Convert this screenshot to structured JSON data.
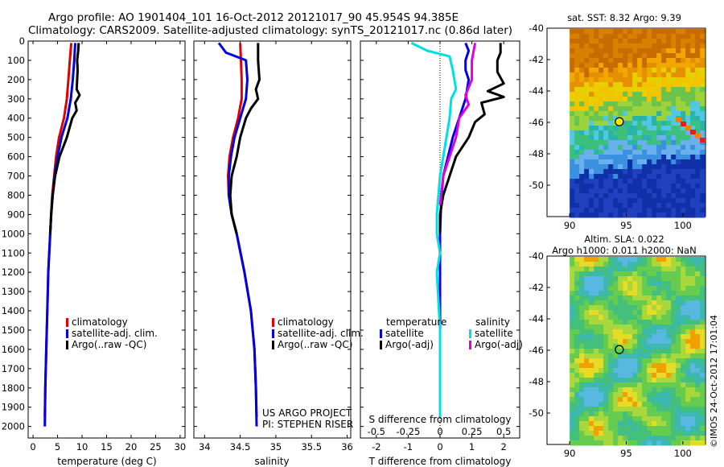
{
  "header": {
    "title_line1": "Argo profile: AO 1901404_101 16-Oct-2012 20121017_90 45.954S 94.385E",
    "title_line2": "Climatology: CARS2009. Satellite-adjusted climatology: synTS_20121017.nc (0.86d later)"
  },
  "credit": {
    "line1": "US ARGO PROJECT",
    "line2": "PI: STEPHEN RISER"
  },
  "footer_stamp": "©IMOS 24-Oct-2012 17:01:04",
  "colors": {
    "climatology": "#e00000",
    "satellite": "#0000e0",
    "argo": "#000000",
    "salinity_satellite": "#00e0e0",
    "salinity_argo": "#e000e0"
  },
  "chart_data": [
    {
      "id": "temperature",
      "type": "line",
      "xlabel": "temperature (deg C)",
      "ylabel": "",
      "xlim": [
        -1,
        31
      ],
      "ylim": [
        2060,
        0
      ],
      "y_reversed": true,
      "xticks": [
        0,
        5,
        10,
        15,
        20,
        25,
        30
      ],
      "yticks": [
        0,
        100,
        200,
        300,
        400,
        500,
        600,
        700,
        800,
        900,
        1000,
        1100,
        1200,
        1300,
        1400,
        1500,
        1600,
        1700,
        1800,
        1900,
        2000
      ],
      "legend_position": "lower-center",
      "legend": [
        "climatology",
        "satellite-adj. clim.",
        "Argo(..raw -QC)"
      ],
      "series": [
        {
          "name": "climatology",
          "color_key": "climatology",
          "depth": [
            10,
            100,
            200,
            300,
            400,
            500,
            600,
            700,
            800,
            900,
            1000,
            1200,
            1400,
            1600,
            1800,
            1950
          ],
          "values": [
            7.8,
            7.5,
            7.2,
            6.9,
            6.3,
            5.3,
            4.7,
            4.3,
            3.9,
            3.7,
            3.5,
            3.1,
            2.9,
            2.7,
            2.5,
            2.4
          ]
        },
        {
          "name": "satellite-adj. clim.",
          "color_key": "satellite",
          "depth": [
            10,
            100,
            200,
            300,
            400,
            500,
            600,
            700,
            800,
            900,
            1000,
            1200,
            1400,
            1600,
            1800,
            2000
          ],
          "values": [
            8.6,
            8.4,
            8.1,
            7.7,
            7.0,
            5.8,
            5.0,
            4.4,
            4.0,
            3.7,
            3.5,
            3.1,
            2.9,
            2.7,
            2.5,
            2.4
          ]
        },
        {
          "name": "Argo(..raw -QC)",
          "color_key": "argo",
          "depth": [
            10,
            50,
            100,
            150,
            200,
            250,
            280,
            320,
            360,
            400,
            500,
            600,
            700,
            800,
            900,
            1000
          ],
          "values": [
            9.3,
            9.2,
            9.0,
            9.1,
            9.0,
            8.9,
            9.5,
            8.6,
            8.9,
            8.0,
            6.9,
            5.4,
            4.5,
            4.0,
            3.7,
            3.5
          ]
        }
      ]
    },
    {
      "id": "salinity",
      "type": "line",
      "xlabel": "salinity",
      "ylabel": "",
      "xlim": [
        33.85,
        36.05
      ],
      "ylim": [
        2060,
        0
      ],
      "y_reversed": true,
      "xticks": [
        34,
        34.5,
        35,
        35.5,
        36
      ],
      "legend_position": "lower-center",
      "legend": [
        "climatology",
        "satellite-adj. clim.",
        "Argo(..raw -QC)"
      ],
      "series": [
        {
          "name": "climatology",
          "color_key": "climatology",
          "depth": [
            10,
            100,
            200,
            300,
            400,
            500,
            600,
            700,
            800,
            900,
            1000,
            1200,
            1400,
            1600,
            1800,
            1950
          ],
          "values": [
            34.5,
            34.51,
            34.52,
            34.52,
            34.47,
            34.4,
            34.35,
            34.33,
            34.34,
            34.38,
            34.45,
            34.56,
            34.65,
            34.7,
            34.72,
            34.73
          ]
        },
        {
          "name": "satellite-adj. clim.",
          "color_key": "satellite",
          "depth": [
            10,
            60,
            100,
            200,
            300,
            400,
            500,
            600,
            700,
            800,
            900,
            1000,
            1200,
            1400,
            1600,
            1800,
            2000
          ],
          "values": [
            34.2,
            34.3,
            34.58,
            34.6,
            34.58,
            34.5,
            34.42,
            34.37,
            34.34,
            34.34,
            34.38,
            34.45,
            34.56,
            34.65,
            34.7,
            34.72,
            34.73
          ]
        },
        {
          "name": "Argo(..raw -QC)",
          "color_key": "argo",
          "depth": [
            10,
            100,
            200,
            250,
            300,
            350,
            400,
            500,
            600,
            700,
            800,
            900,
            1000
          ],
          "values": [
            34.75,
            34.75,
            34.77,
            34.72,
            34.75,
            34.65,
            34.58,
            34.5,
            34.45,
            34.38,
            34.36,
            34.38,
            34.45
          ]
        }
      ]
    },
    {
      "id": "difference",
      "type": "line",
      "xlabel": "T difference from climatology",
      "xlabel_top": "S difference from climatology",
      "ylabel": "",
      "xlim": [
        -2.5,
        2.5
      ],
      "ylim": [
        2060,
        0
      ],
      "y_reversed": true,
      "xticks": [
        -2,
        -1,
        0,
        1,
        2
      ],
      "xtick_labels_top": [
        "-0.5",
        "-0.25",
        "0",
        "0.25",
        "0.5"
      ],
      "xticks_top_values": [
        -2,
        -1,
        0,
        1,
        2
      ],
      "zero_line": "dotted",
      "legend_position": "lower-center",
      "legend_groups": [
        {
          "title": "temperature",
          "items": [
            "satellite",
            "Argo(-adj)"
          ]
        },
        {
          "title": "salinity",
          "items": [
            "satellite",
            "Argo(-adj)"
          ]
        }
      ],
      "series": [
        {
          "name": "satellite",
          "group": "temperature",
          "color_key": "satellite",
          "depth": [
            10,
            50,
            100,
            150,
            200,
            300,
            400,
            500,
            600,
            700,
            800,
            900,
            1000,
            1200,
            1500,
            1800,
            1950
          ],
          "values": [
            0.8,
            0.9,
            0.8,
            0.8,
            0.9,
            0.8,
            0.6,
            0.4,
            0.25,
            0.1,
            0.05,
            0.02,
            0,
            0,
            0,
            0,
            0
          ]
        },
        {
          "name": "Argo(-adj)",
          "group": "temperature",
          "color_key": "argo",
          "depth": [
            10,
            60,
            100,
            160,
            220,
            260,
            290,
            320,
            380,
            420,
            500,
            600,
            700,
            800,
            900,
            1000
          ],
          "values": [
            1.9,
            1.9,
            1.8,
            1.8,
            2.0,
            1.5,
            2.0,
            1.3,
            1.4,
            1.1,
            0.9,
            0.5,
            0.3,
            0.1,
            0.0,
            0.0
          ]
        },
        {
          "name": "satellite",
          "group": "salinity",
          "color_key": "salinity_satellite",
          "depth": [
            10,
            50,
            80,
            150,
            250,
            300,
            400,
            500,
            600,
            700,
            800,
            900,
            1000,
            1100,
            1200,
            1500,
            1800,
            1950
          ],
          "values": [
            -0.9,
            -0.4,
            0.3,
            0.4,
            0.5,
            0.35,
            0.3,
            0.2,
            0.1,
            0.0,
            -0.05,
            -0.1,
            -0.1,
            0.0,
            -0.1,
            0.0,
            0.0,
            0.0
          ]
        },
        {
          "name": "Argo(-adj)",
          "group": "salinity",
          "color_key": "salinity_argo",
          "depth": [
            10,
            100,
            200,
            280,
            330,
            400,
            500,
            600,
            700,
            850
          ],
          "values": [
            1.1,
            1.0,
            1.0,
            0.8,
            0.9,
            0.6,
            0.5,
            0.3,
            0.1,
            0.0
          ]
        }
      ]
    },
    {
      "id": "sst_map",
      "type": "heatmap",
      "title": "sat. SST: 8.32 Argo: 9.39",
      "xlim": [
        88,
        102
      ],
      "ylim": [
        -52,
        -40
      ],
      "xticks": [
        90,
        95,
        100
      ],
      "yticks": [
        -40,
        -42,
        -44,
        -46,
        -48,
        -50
      ],
      "marker": {
        "lon": 94.385,
        "lat": -45.954
      }
    },
    {
      "id": "sla_map",
      "type": "heatmap",
      "title_line1": "Altim. SLA: 0.022",
      "title_line2": "Argo h1000: 0.011 h2000: NaN",
      "xlim": [
        88,
        102
      ],
      "ylim": [
        -52,
        -40
      ],
      "xticks": [
        90,
        95,
        100
      ],
      "yticks": [
        -40,
        -42,
        -44,
        -46,
        -48,
        -50
      ],
      "marker": {
        "lon": 94.385,
        "lat": -45.954
      }
    }
  ]
}
